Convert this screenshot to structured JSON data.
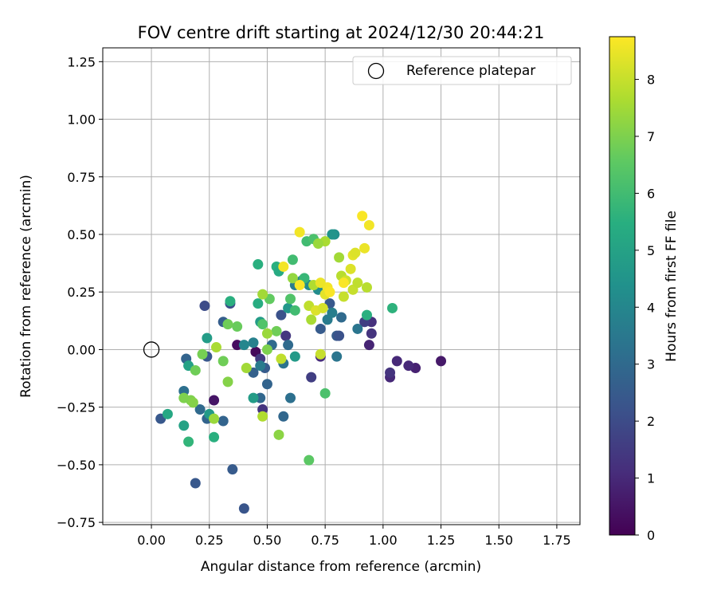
{
  "chart_data": {
    "type": "scatter",
    "title": "FOV centre drift starting at 2024/12/30 20:44:21",
    "xlabel": "Angular distance from reference (arcmin)",
    "ylabel": "Rotation from reference (arcmin)",
    "xlim": [
      -0.21,
      1.85
    ],
    "ylim": [
      -0.76,
      1.31
    ],
    "xticks": [
      "0.00",
      "0.25",
      "0.50",
      "0.75",
      "1.00",
      "1.25",
      "1.50",
      "1.75"
    ],
    "yticks": [
      "−0.75",
      "−0.50",
      "−0.25",
      "0.00",
      "0.25",
      "0.50",
      "0.75",
      "1.00",
      "1.25"
    ],
    "grid": true,
    "legend": {
      "location": "top-right",
      "entries": [
        {
          "label": "Reference platepar",
          "marker": "open-circle"
        }
      ]
    },
    "reference_point": {
      "x": 0.0,
      "y": 0.0
    },
    "colorbar": {
      "label": "Hours from first FF file",
      "colormap": "viridis",
      "range": [
        0,
        8.75
      ],
      "ticks": [
        "0",
        "1",
        "2",
        "3",
        "4",
        "5",
        "6",
        "7",
        "8"
      ]
    },
    "series": [
      {
        "points": [
          {
            "x": 0.37,
            "y": 0.02,
            "c": 0.3
          },
          {
            "x": 0.45,
            "y": -0.01,
            "c": 0.2
          },
          {
            "x": 0.27,
            "y": -0.22,
            "c": 0.5
          },
          {
            "x": 1.25,
            "y": -0.05,
            "c": 0.6
          },
          {
            "x": 1.14,
            "y": -0.08,
            "c": 0.8
          },
          {
            "x": 1.11,
            "y": -0.07,
            "c": 1.0
          },
          {
            "x": 1.06,
            "y": -0.05,
            "c": 1.0
          },
          {
            "x": 1.03,
            "y": -0.12,
            "c": 1.0
          },
          {
            "x": 1.03,
            "y": -0.1,
            "c": 1.3
          },
          {
            "x": 0.94,
            "y": 0.02,
            "c": 0.9
          },
          {
            "x": 0.95,
            "y": 0.07,
            "c": 1.3
          },
          {
            "x": 0.95,
            "y": 0.12,
            "c": 1.2
          },
          {
            "x": 0.92,
            "y": 0.12,
            "c": 1.6
          },
          {
            "x": 0.69,
            "y": -0.12,
            "c": 1.6
          },
          {
            "x": 0.73,
            "y": -0.03,
            "c": 1.1
          },
          {
            "x": 0.47,
            "y": -0.04,
            "c": 1.5
          },
          {
            "x": 0.48,
            "y": -0.26,
            "c": 1.3
          },
          {
            "x": 0.58,
            "y": 0.06,
            "c": 1.4
          },
          {
            "x": 0.23,
            "y": 0.19,
            "c": 2.0
          },
          {
            "x": 0.34,
            "y": 0.2,
            "c": 2.1
          },
          {
            "x": 0.4,
            "y": -0.69,
            "c": 2.3
          },
          {
            "x": 0.35,
            "y": -0.52,
            "c": 2.5
          },
          {
            "x": 0.19,
            "y": -0.58,
            "c": 2.4
          },
          {
            "x": 0.04,
            "y": -0.3,
            "c": 2.4
          },
          {
            "x": 0.31,
            "y": 0.12,
            "c": 2.6
          },
          {
            "x": 0.24,
            "y": -0.03,
            "c": 2.4
          },
          {
            "x": 0.14,
            "y": -0.18,
            "c": 3.2
          },
          {
            "x": 0.15,
            "y": -0.04,
            "c": 2.8
          },
          {
            "x": 0.21,
            "y": -0.26,
            "c": 3.0
          },
          {
            "x": 0.24,
            "y": -0.3,
            "c": 2.8
          },
          {
            "x": 0.31,
            "y": -0.31,
            "c": 2.8
          },
          {
            "x": 0.44,
            "y": -0.1,
            "c": 2.7
          },
          {
            "x": 0.47,
            "y": -0.21,
            "c": 2.9
          },
          {
            "x": 0.49,
            "y": -0.08,
            "c": 2.5
          },
          {
            "x": 0.5,
            "y": -0.15,
            "c": 2.8
          },
          {
            "x": 0.52,
            "y": 0.02,
            "c": 3.0
          },
          {
            "x": 0.56,
            "y": 0.15,
            "c": 2.2
          },
          {
            "x": 0.57,
            "y": -0.29,
            "c": 2.9
          },
          {
            "x": 0.59,
            "y": 0.02,
            "c": 3.0
          },
          {
            "x": 0.6,
            "y": -0.21,
            "c": 3.2
          },
          {
            "x": 0.57,
            "y": -0.06,
            "c": 3.3
          },
          {
            "x": 0.73,
            "y": 0.09,
            "c": 2.5
          },
          {
            "x": 0.77,
            "y": 0.2,
            "c": 2.4
          },
          {
            "x": 0.8,
            "y": 0.06,
            "c": 2.5
          },
          {
            "x": 0.81,
            "y": 0.06,
            "c": 2.2
          },
          {
            "x": 0.82,
            "y": 0.14,
            "c": 3.0
          },
          {
            "x": 0.89,
            "y": 0.09,
            "c": 3.4
          },
          {
            "x": 0.8,
            "y": -0.03,
            "c": 3.4
          },
          {
            "x": 0.76,
            "y": 0.13,
            "c": 3.6
          },
          {
            "x": 0.78,
            "y": 0.16,
            "c": 3.7
          },
          {
            "x": 0.47,
            "y": -0.07,
            "c": 3.6
          },
          {
            "x": 0.44,
            "y": 0.03,
            "c": 3.8
          },
          {
            "x": 0.4,
            "y": 0.02,
            "c": 4.0
          },
          {
            "x": 0.62,
            "y": 0.28,
            "c": 3.6
          },
          {
            "x": 0.65,
            "y": 0.3,
            "c": 3.8
          },
          {
            "x": 0.79,
            "y": 0.5,
            "c": 4.3
          },
          {
            "x": 0.78,
            "y": 0.5,
            "c": 4.5
          },
          {
            "x": 0.68,
            "y": 0.28,
            "c": 4.2
          },
          {
            "x": 0.72,
            "y": 0.26,
            "c": 4.2
          },
          {
            "x": 0.59,
            "y": 0.18,
            "c": 4.6
          },
          {
            "x": 0.62,
            "y": -0.03,
            "c": 4.7
          },
          {
            "x": 0.44,
            "y": -0.21,
            "c": 4.8
          },
          {
            "x": 0.47,
            "y": 0.12,
            "c": 4.8
          },
          {
            "x": 0.24,
            "y": 0.05,
            "c": 4.8
          },
          {
            "x": 0.25,
            "y": -0.28,
            "c": 4.7
          },
          {
            "x": 0.16,
            "y": -0.07,
            "c": 5.0
          },
          {
            "x": 0.14,
            "y": -0.33,
            "c": 5.0
          },
          {
            "x": 0.07,
            "y": -0.28,
            "c": 5.2
          },
          {
            "x": 0.27,
            "y": -0.38,
            "c": 5.5
          },
          {
            "x": 0.16,
            "y": -0.4,
            "c": 5.7
          },
          {
            "x": 0.34,
            "y": 0.21,
            "c": 5.5
          },
          {
            "x": 0.46,
            "y": 0.2,
            "c": 5.4
          },
          {
            "x": 0.46,
            "y": 0.37,
            "c": 5.5
          },
          {
            "x": 0.54,
            "y": 0.36,
            "c": 5.5
          },
          {
            "x": 0.55,
            "y": 0.34,
            "c": 5.3
          },
          {
            "x": 0.93,
            "y": 0.15,
            "c": 5.5
          },
          {
            "x": 1.04,
            "y": 0.18,
            "c": 5.6
          },
          {
            "x": 0.66,
            "y": 0.31,
            "c": 5.8
          },
          {
            "x": 0.61,
            "y": 0.39,
            "c": 6.0
          },
          {
            "x": 0.67,
            "y": 0.47,
            "c": 6.0
          },
          {
            "x": 0.7,
            "y": 0.48,
            "c": 6.2
          },
          {
            "x": 0.62,
            "y": 0.17,
            "c": 6.0
          },
          {
            "x": 0.6,
            "y": 0.22,
            "c": 6.3
          },
          {
            "x": 0.75,
            "y": -0.19,
            "c": 6.2
          },
          {
            "x": 0.68,
            "y": -0.48,
            "c": 6.5
          },
          {
            "x": 0.55,
            "y": -0.37,
            "c": 7.2
          },
          {
            "x": 0.48,
            "y": 0.11,
            "c": 6.3
          },
          {
            "x": 0.51,
            "y": 0.22,
            "c": 6.6
          },
          {
            "x": 0.54,
            "y": 0.08,
            "c": 6.8
          },
          {
            "x": 0.37,
            "y": 0.1,
            "c": 6.7
          },
          {
            "x": 0.33,
            "y": 0.11,
            "c": 6.8
          },
          {
            "x": 0.31,
            "y": -0.05,
            "c": 6.8
          },
          {
            "x": 0.22,
            "y": -0.02,
            "c": 6.9
          },
          {
            "x": 0.19,
            "y": -0.09,
            "c": 6.8
          },
          {
            "x": 0.14,
            "y": -0.21,
            "c": 7.0
          },
          {
            "x": 0.17,
            "y": -0.22,
            "c": 7.0
          },
          {
            "x": 0.18,
            "y": -0.23,
            "c": 7.1
          },
          {
            "x": 0.27,
            "y": -0.3,
            "c": 7.4
          },
          {
            "x": 0.33,
            "y": -0.14,
            "c": 7.1
          },
          {
            "x": 0.5,
            "y": 0.0,
            "c": 7.0
          },
          {
            "x": 0.41,
            "y": -0.08,
            "c": 7.5
          },
          {
            "x": 0.48,
            "y": -0.29,
            "c": 7.7
          },
          {
            "x": 0.28,
            "y": 0.01,
            "c": 7.6
          },
          {
            "x": 0.48,
            "y": 0.24,
            "c": 7.5
          },
          {
            "x": 0.5,
            "y": 0.07,
            "c": 7.4
          },
          {
            "x": 0.56,
            "y": -0.04,
            "c": 7.9
          },
          {
            "x": 0.61,
            "y": 0.31,
            "c": 7.3
          },
          {
            "x": 0.75,
            "y": 0.47,
            "c": 7.6
          },
          {
            "x": 0.72,
            "y": 0.46,
            "c": 7.4
          },
          {
            "x": 0.7,
            "y": 0.28,
            "c": 7.7
          },
          {
            "x": 0.69,
            "y": 0.13,
            "c": 7.6
          },
          {
            "x": 0.68,
            "y": 0.19,
            "c": 7.9
          },
          {
            "x": 0.71,
            "y": 0.17,
            "c": 8.3
          },
          {
            "x": 0.74,
            "y": 0.18,
            "c": 8.2
          },
          {
            "x": 0.73,
            "y": -0.02,
            "c": 8.0
          },
          {
            "x": 0.75,
            "y": 0.24,
            "c": 8.4
          },
          {
            "x": 0.76,
            "y": 0.27,
            "c": 8.6
          },
          {
            "x": 0.73,
            "y": 0.29,
            "c": 8.5
          },
          {
            "x": 0.82,
            "y": 0.32,
            "c": 7.8
          },
          {
            "x": 0.81,
            "y": 0.4,
            "c": 7.5
          },
          {
            "x": 0.84,
            "y": 0.3,
            "c": 8.1
          },
          {
            "x": 0.83,
            "y": 0.23,
            "c": 8.0
          },
          {
            "x": 0.86,
            "y": 0.35,
            "c": 8.3
          },
          {
            "x": 0.87,
            "y": 0.41,
            "c": 8.4
          },
          {
            "x": 0.88,
            "y": 0.42,
            "c": 8.3
          },
          {
            "x": 0.87,
            "y": 0.26,
            "c": 8.0
          },
          {
            "x": 0.89,
            "y": 0.29,
            "c": 7.9
          },
          {
            "x": 0.93,
            "y": 0.27,
            "c": 7.8
          },
          {
            "x": 0.92,
            "y": 0.44,
            "c": 8.5
          },
          {
            "x": 0.91,
            "y": 0.58,
            "c": 8.7
          },
          {
            "x": 0.94,
            "y": 0.54,
            "c": 8.6
          },
          {
            "x": 0.64,
            "y": 0.51,
            "c": 8.6
          },
          {
            "x": 0.57,
            "y": 0.36,
            "c": 8.6
          },
          {
            "x": 0.64,
            "y": 0.28,
            "c": 8.7
          },
          {
            "x": 0.83,
            "y": 0.29,
            "c": 8.7
          },
          {
            "x": 0.77,
            "y": 0.25,
            "c": 8.7
          }
        ]
      }
    ]
  }
}
